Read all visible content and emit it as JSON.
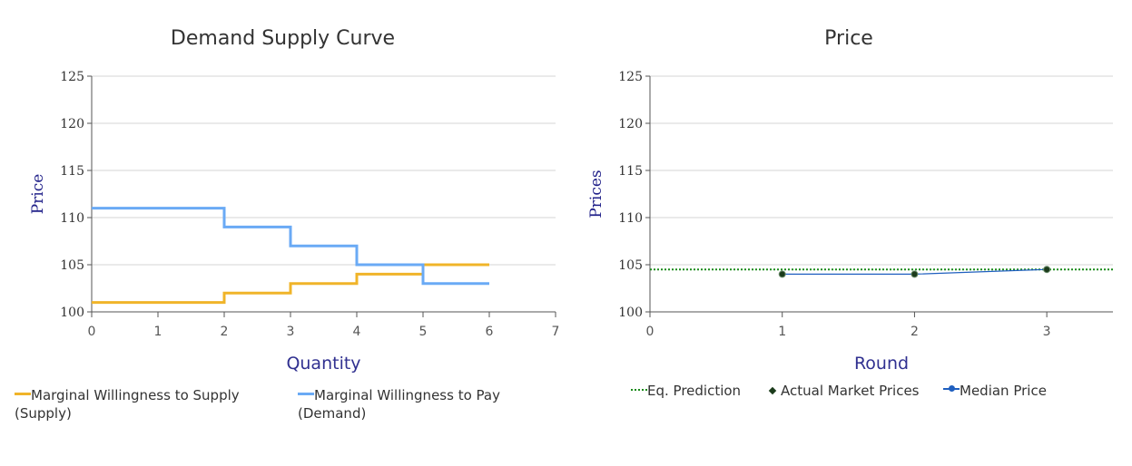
{
  "charts": {
    "left": {
      "title": "Demand Supply Curve",
      "xlabel": "Quantity",
      "ylabel": "Price",
      "legend": [
        {
          "label": "Marginal Willingness to Supply (Supply)",
          "color": "#f0b429"
        },
        {
          "label": "Marginal Willingness to Pay (Demand)",
          "color": "#6aaaf5"
        }
      ]
    },
    "right": {
      "title": "Price",
      "xlabel": "Round",
      "ylabel": "Prices",
      "legend": [
        {
          "label": "Eq. Prediction",
          "color": "#1a8a1a"
        },
        {
          "label": "Actual Market Prices",
          "color": "#1b3b1b"
        },
        {
          "label": "Median Price",
          "color": "#1f5fbf"
        }
      ]
    }
  },
  "chart_data": [
    {
      "type": "line",
      "title": "Demand Supply Curve",
      "xlabel": "Quantity",
      "ylabel": "Price",
      "xlim": [
        0,
        7
      ],
      "ylim": [
        100,
        125
      ],
      "xticks": [
        0,
        1,
        2,
        3,
        4,
        5,
        6,
        7
      ],
      "yticks": [
        100,
        105,
        110,
        115,
        120,
        125
      ],
      "grid": true,
      "step": true,
      "legend_position": "bottom",
      "series": [
        {
          "name": "Marginal Willingness to Supply (Supply)",
          "color": "#f0b429",
          "x": [
            0,
            2,
            3,
            4,
            5,
            6
          ],
          "y": [
            101,
            102,
            103,
            104,
            105,
            105
          ]
        },
        {
          "name": "Marginal Willingness to Pay (Demand)",
          "color": "#6aaaf5",
          "x": [
            0,
            2,
            3,
            4,
            5,
            6
          ],
          "y": [
            111,
            109,
            107,
            105,
            103,
            103
          ]
        }
      ]
    },
    {
      "type": "line",
      "title": "Price",
      "xlabel": "Round",
      "ylabel": "Prices",
      "xlim": [
        0,
        3.5
      ],
      "ylim": [
        100,
        125
      ],
      "xticks": [
        0,
        1,
        2,
        3
      ],
      "yticks": [
        100,
        105,
        110,
        115,
        120,
        125
      ],
      "grid": true,
      "legend_position": "bottom",
      "series": [
        {
          "name": "Eq. Prediction",
          "color": "#1a8a1a",
          "style": "dotted",
          "x": [
            0,
            3.5
          ],
          "y": [
            104.5,
            104.5
          ]
        },
        {
          "name": "Actual Market Prices",
          "color": "#1b3b1b",
          "style": "markers",
          "x": [
            1,
            2,
            3
          ],
          "y": [
            104,
            104,
            104.5
          ]
        },
        {
          "name": "Median Price",
          "color": "#1f5fbf",
          "style": "line",
          "x": [
            1,
            2,
            3
          ],
          "y": [
            104,
            104,
            104.5
          ]
        }
      ]
    }
  ]
}
